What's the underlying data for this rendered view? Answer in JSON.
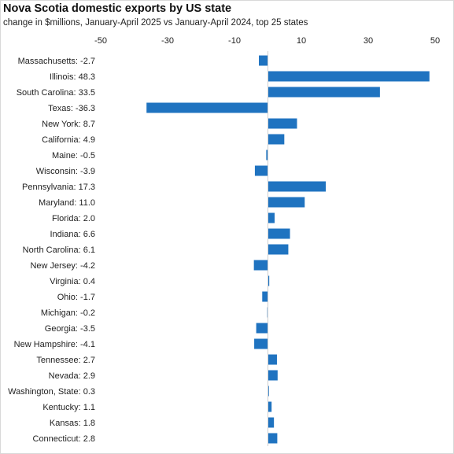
{
  "chart_data": {
    "type": "bar",
    "orientation": "horizontal",
    "title": "Nova Scotia domestic exports by US state",
    "subtitle": "change in $millions, January-April 2025 vs January-April 2024, top 25 states",
    "categories": [
      "Massachusetts",
      "Illinois",
      "South Carolina",
      "Texas",
      "New York",
      "California",
      "Maine",
      "Wisconsin",
      "Pennsylvania",
      "Maryland",
      "Florida",
      "Indiana",
      "North Carolina",
      "New Jersey",
      "Virginia",
      "Ohio",
      "Michigan",
      "Georgia",
      "New Hampshire",
      "Tennessee",
      "Nevada",
      "Washington, State",
      "Kentucky",
      "Kansas",
      "Connecticut"
    ],
    "labels": [
      "Massachusetts: -2.7",
      "Illinois: 48.3",
      "South Carolina: 33.5",
      "Texas: -36.3",
      "New York: 8.7",
      "California: 4.9",
      "Maine: -0.5",
      "Wisconsin: -3.9",
      "Pennsylvania: 17.3",
      "Maryland: 11.0",
      "Florida: 2.0",
      "Indiana: 6.6",
      "North Carolina: 6.1",
      "New Jersey: -4.2",
      "Virginia: 0.4",
      "Ohio: -1.7",
      "Michigan: -0.2",
      "Georgia: -3.5",
      "New Hampshire: -4.1",
      "Tennessee: 2.7",
      "Nevada: 2.9",
      "Washington, State: 0.3",
      "Kentucky: 1.1",
      "Kansas: 1.8",
      "Connecticut: 2.8"
    ],
    "values": [
      -2.7,
      48.3,
      33.5,
      -36.3,
      8.7,
      4.9,
      -0.5,
      -3.9,
      17.3,
      11.0,
      2.0,
      6.6,
      6.1,
      -4.2,
      0.4,
      -1.7,
      -0.2,
      -3.5,
      -4.1,
      2.7,
      2.9,
      0.3,
      1.1,
      1.8,
      2.8
    ],
    "xticks": [
      "-50",
      "-30",
      "-10",
      "10",
      "30",
      "50"
    ],
    "xtick_values": [
      -50,
      -30,
      -10,
      10,
      30,
      50
    ],
    "xlim": [
      -50,
      50
    ],
    "axis_position": "top",
    "grid": false,
    "bar_color": "#1f73c0"
  }
}
